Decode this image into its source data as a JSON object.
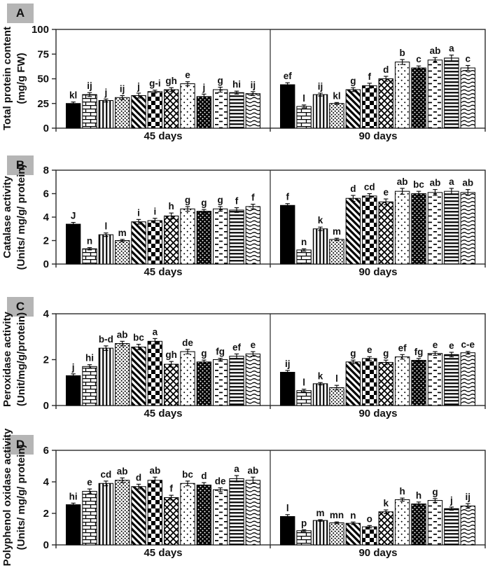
{
  "figure_title": "Four-panel patterned bar chart figure",
  "colors": {
    "background": "#ffffff",
    "bar_fill": "#000000",
    "axis": "#2a2a2a",
    "panel_tag_bg": "#b5b5b5",
    "text": "#111111"
  },
  "bar_patterns": [
    "solid-black",
    "brick",
    "vertical-lines",
    "fine-dots",
    "diagonal-stripes",
    "checkerboard",
    "diamond-lattice",
    "sparse-dots",
    "dark-dotted",
    "horizontal-dashes",
    "horizontal-lines",
    "waves"
  ],
  "chart_data": [
    {
      "panel": "A",
      "type": "bar",
      "ylabel_line1": "Total protein content",
      "ylabel_line2": "(mg/g FW)",
      "ylim": [
        0,
        100
      ],
      "yticks": [
        0,
        25,
        50,
        75,
        100
      ],
      "grid": false,
      "legend": "none",
      "groups": [
        {
          "label": "45 days",
          "letters": [
            "kl",
            "ij",
            "j",
            "ij",
            "j",
            "g-i",
            "gh",
            "e",
            "j",
            "g",
            "hi",
            "ij"
          ],
          "values": [
            25,
            34,
            28,
            31,
            33,
            37,
            39,
            45,
            32,
            39,
            36,
            35
          ],
          "errors": [
            1.5,
            2,
            1.5,
            2,
            2.5,
            1.5,
            2,
            2,
            2.5,
            2.5,
            1.5,
            2
          ]
        },
        {
          "label": "90 days",
          "letters": [
            "ef",
            "l",
            "ij",
            "kl",
            "g",
            "f",
            "d",
            "b",
            "c",
            "ab",
            "a",
            "c"
          ],
          "values": [
            44,
            22,
            34,
            25,
            39,
            43,
            50,
            67,
            61,
            69,
            71,
            61
          ],
          "errors": [
            2,
            1.5,
            1.5,
            1,
            2,
            2.5,
            2.5,
            2.5,
            2,
            2.5,
            3,
            2.5
          ]
        }
      ]
    },
    {
      "panel": "B",
      "type": "bar",
      "ylabel_line1": "Catalase activity",
      "ylabel_line2": "(Units/ mg/g/ protein)",
      "ylim": [
        0,
        8
      ],
      "yticks": [
        0,
        2,
        4,
        6,
        8
      ],
      "grid": false,
      "legend": "none",
      "groups": [
        {
          "label": "45 days",
          "letters": [
            "J",
            "n",
            "l",
            "m",
            "i",
            "i",
            "h",
            "g",
            "g",
            "g",
            "f",
            "f"
          ],
          "values": [
            3.4,
            1.3,
            2.5,
            2.0,
            3.6,
            3.7,
            4.1,
            4.7,
            4.5,
            4.7,
            4.6,
            4.9
          ],
          "errors": [
            0.15,
            0.1,
            0.15,
            0.1,
            0.2,
            0.2,
            0.25,
            0.2,
            0.15,
            0.2,
            0.2,
            0.2
          ]
        },
        {
          "label": "90 days",
          "letters": [
            "f",
            "n",
            "k",
            "m",
            "d",
            "cd",
            "e",
            "ab",
            "bc",
            "ab",
            "a",
            "ab"
          ],
          "values": [
            5.0,
            1.2,
            3.0,
            2.1,
            5.6,
            5.8,
            5.3,
            6.2,
            6.0,
            6.1,
            6.2,
            6.1
          ],
          "errors": [
            0.15,
            0.1,
            0.15,
            0.1,
            0.25,
            0.2,
            0.25,
            0.25,
            0.2,
            0.25,
            0.25,
            0.25
          ]
        }
      ]
    },
    {
      "panel": "C",
      "type": "bar",
      "ylabel_line1": "Peroxidase activity",
      "ylabel_line2": "(Unit/mg/g/protein)",
      "ylim": [
        0,
        4
      ],
      "yticks": [
        0,
        2,
        4
      ],
      "grid": false,
      "legend": "none",
      "groups": [
        {
          "label": "45 days",
          "letters": [
            "j",
            "hi",
            "b-d",
            "ab",
            "bc",
            "a",
            "gh",
            "de",
            "g",
            "fg",
            "ef",
            "e"
          ],
          "values": [
            1.3,
            1.7,
            2.5,
            2.7,
            2.55,
            2.8,
            1.8,
            2.35,
            1.9,
            2.0,
            2.15,
            2.25
          ],
          "errors": [
            0.08,
            0.08,
            0.1,
            0.1,
            0.12,
            0.12,
            0.12,
            0.1,
            0.08,
            0.06,
            0.1,
            0.1
          ]
        },
        {
          "label": "90 days",
          "letters": [
            "ij",
            "l",
            "k",
            "l",
            "g",
            "e",
            "g",
            "ef",
            "fg",
            "e",
            "e",
            "c-e"
          ],
          "values": [
            1.45,
            0.65,
            0.95,
            0.78,
            1.9,
            2.05,
            1.88,
            2.12,
            1.97,
            2.27,
            2.22,
            2.3
          ],
          "errors": [
            0.08,
            0.06,
            0.05,
            0.1,
            0.08,
            0.08,
            0.1,
            0.1,
            0.08,
            0.08,
            0.1,
            0.06
          ]
        }
      ]
    },
    {
      "panel": "D",
      "type": "bar",
      "ylabel_line1": "Polyphenol oxidase activity",
      "ylabel_line2": "(Units/ mg/g/ protein)",
      "ylim": [
        0,
        6
      ],
      "yticks": [
        0,
        2,
        4,
        6
      ],
      "grid": false,
      "legend": "none",
      "groups": [
        {
          "label": "45 days",
          "letters": [
            "hi",
            "e",
            "cd",
            "ab",
            "d",
            "ab",
            "f",
            "bc",
            "d",
            "de",
            "a",
            "ab"
          ],
          "values": [
            2.55,
            3.4,
            3.9,
            4.1,
            3.7,
            4.1,
            3.0,
            3.9,
            3.8,
            3.5,
            4.2,
            4.1
          ],
          "errors": [
            0.1,
            0.15,
            0.15,
            0.15,
            0.15,
            0.2,
            0.15,
            0.15,
            0.15,
            0.12,
            0.2,
            0.2
          ]
        },
        {
          "label": "90 days",
          "letters": [
            "l",
            "p",
            "m",
            "mn",
            "n",
            "o",
            "k",
            "h",
            "h",
            "g",
            "j",
            "ij"
          ],
          "values": [
            1.8,
            0.9,
            1.55,
            1.4,
            1.37,
            1.15,
            2.1,
            2.87,
            2.6,
            2.82,
            2.3,
            2.47
          ],
          "errors": [
            0.12,
            0.06,
            0.05,
            0.06,
            0.08,
            0.08,
            0.12,
            0.1,
            0.12,
            0.12,
            0.1,
            0.15
          ]
        }
      ]
    }
  ]
}
